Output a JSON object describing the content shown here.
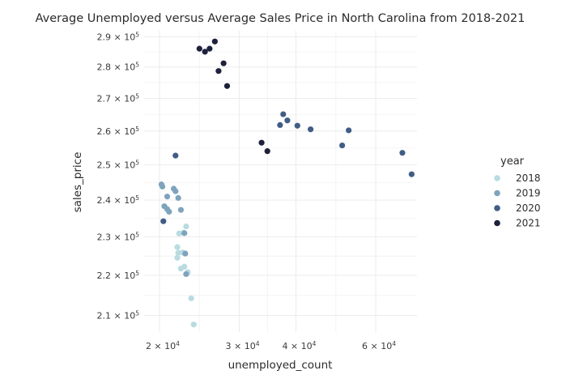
{
  "chart_data": {
    "type": "scatter",
    "title": "Average Unemployed versus Average Sales Price in North Carolina from 2018-2021",
    "xlabel": "unemployed_count",
    "ylabel": "sales_price",
    "x_scale": "log10",
    "y_scale": "log10",
    "xlim": [
      18500,
      74000
    ],
    "ylim": [
      206000,
      292000
    ],
    "x_ticks": [
      {
        "value": 20000,
        "mantissa": "2",
        "base": "10",
        "exp": "4"
      },
      {
        "value": 30000,
        "mantissa": "3",
        "base": "10",
        "exp": "4"
      },
      {
        "value": 40000,
        "mantissa": "4",
        "base": "10",
        "exp": "4"
      },
      {
        "value": 60000,
        "mantissa": "6",
        "base": "10",
        "exp": "4"
      }
    ],
    "y_ticks": [
      {
        "value": 210000,
        "mantissa": "2.1",
        "base": "10",
        "exp": "5"
      },
      {
        "value": 220000,
        "mantissa": "2.2",
        "base": "10",
        "exp": "5"
      },
      {
        "value": 230000,
        "mantissa": "2.3",
        "base": "10",
        "exp": "5"
      },
      {
        "value": 240000,
        "mantissa": "2.4",
        "base": "10",
        "exp": "5"
      },
      {
        "value": 250000,
        "mantissa": "2.5",
        "base": "10",
        "exp": "5"
      },
      {
        "value": 260000,
        "mantissa": "2.6",
        "base": "10",
        "exp": "5"
      },
      {
        "value": 270000,
        "mantissa": "2.7",
        "base": "10",
        "exp": "5"
      },
      {
        "value": 280000,
        "mantissa": "2.8",
        "base": "10",
        "exp": "5"
      },
      {
        "value": 290000,
        "mantissa": "2.9",
        "base": "10",
        "exp": "5"
      }
    ],
    "grid": true,
    "legend": {
      "title": "year",
      "placement": "right"
    },
    "series": [
      {
        "name": "2018",
        "color": "#b9dbe2",
        "points": [
          [
            22900,
            232800
          ],
          [
            22600,
            231100
          ],
          [
            22100,
            230900
          ],
          [
            21900,
            227300
          ],
          [
            22000,
            225800
          ],
          [
            22500,
            225900
          ],
          [
            21900,
            224500
          ],
          [
            22700,
            222200
          ],
          [
            22300,
            221700
          ],
          [
            23100,
            220800
          ],
          [
            23500,
            214200
          ],
          [
            23800,
            207800
          ]
        ]
      },
      {
        "name": "2019",
        "color": "#7ea4bd",
        "points": [
          [
            20200,
            244400
          ],
          [
            20300,
            243800
          ],
          [
            21500,
            243200
          ],
          [
            21700,
            242500
          ],
          [
            20800,
            241000
          ],
          [
            22000,
            240600
          ],
          [
            20500,
            238300
          ],
          [
            20800,
            237500
          ],
          [
            21000,
            236800
          ],
          [
            22300,
            237300
          ],
          [
            22700,
            231000
          ],
          [
            22800,
            225600
          ],
          [
            22900,
            220300
          ]
        ]
      },
      {
        "name": "2020",
        "color": "#415d86",
        "points": [
          [
            21700,
            252700
          ],
          [
            20400,
            234200
          ],
          [
            36900,
            261800
          ],
          [
            37500,
            265100
          ],
          [
            38300,
            263200
          ],
          [
            40300,
            261600
          ],
          [
            43100,
            260500
          ],
          [
            52300,
            260200
          ],
          [
            50600,
            255700
          ],
          [
            68700,
            253500
          ],
          [
            72000,
            247300
          ]
        ]
      },
      {
        "name": "2021",
        "color": "#1e213b",
        "points": [
          [
            24500,
            286000
          ],
          [
            25200,
            285000
          ],
          [
            25800,
            286000
          ],
          [
            26500,
            288400
          ],
          [
            27700,
            281200
          ],
          [
            27000,
            278700
          ],
          [
            28200,
            273900
          ],
          [
            33600,
            256500
          ],
          [
            34600,
            254000
          ]
        ]
      }
    ]
  }
}
